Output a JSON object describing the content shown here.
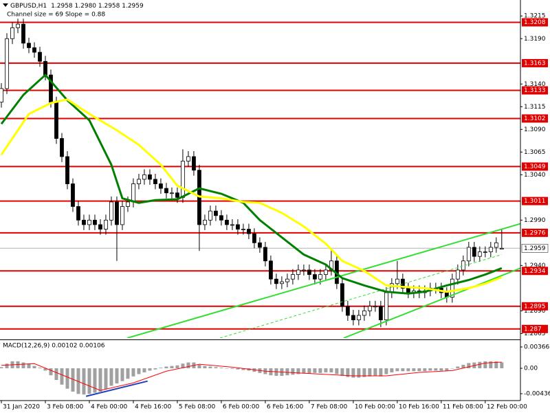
{
  "chart_data": [
    {
      "type": "candlestick",
      "title": "GBPUSD,H1",
      "ohlc_label": "1.2958 1.2980 1.2958 1.2959",
      "annotation": "Channel size = 69 Slope = 0.88",
      "open": [
        1.312,
        1.3135,
        1.319,
        1.3202,
        1.3206,
        1.3185,
        1.318,
        1.3175,
        1.3165,
        1.315,
        1.312,
        1.308,
        1.306,
        1.303,
        1.3005,
        1.299,
        1.2985,
        1.299,
        1.2985,
        1.298,
        1.299,
        1.301,
        1.2985,
        1.3005,
        1.301,
        1.303,
        1.3035,
        1.304,
        1.3035,
        1.303,
        1.3025,
        1.302,
        1.302,
        1.3015,
        1.3055,
        1.306,
        1.3045,
        1.2985,
        1.299,
        1.3,
        1.2995,
        1.299,
        1.2985,
        1.2985,
        1.298,
        1.298,
        1.2975,
        1.2965,
        1.296,
        1.2945,
        1.2925,
        1.292,
        1.2922,
        1.2925,
        1.293,
        1.2935,
        1.2935,
        1.293,
        1.2925,
        1.293,
        1.2935,
        1.2945,
        1.292,
        1.2895,
        1.2885,
        1.288,
        1.2885,
        1.289,
        1.2895,
        1.2895,
        1.288,
        1.291,
        1.292,
        1.2925,
        1.2915,
        1.291,
        1.2912,
        1.291,
        1.2912,
        1.2915,
        1.2915,
        1.291,
        1.2905,
        1.2925,
        1.2935,
        1.2945,
        1.296,
        1.295,
        1.2955,
        1.2955,
        1.296,
        1.2958
      ],
      "high": [
        1.3141,
        1.3196,
        1.3208,
        1.3212,
        1.3212,
        1.3191,
        1.3186,
        1.3181,
        1.3171,
        1.3156,
        1.3126,
        1.3086,
        1.3066,
        1.3036,
        1.3011,
        1.2996,
        1.2996,
        1.2996,
        1.2991,
        1.2996,
        1.3016,
        1.3016,
        1.3011,
        1.3016,
        1.3036,
        1.3041,
        1.3046,
        1.3046,
        1.3041,
        1.3036,
        1.3031,
        1.3026,
        1.3026,
        1.3068,
        1.3066,
        1.3066,
        1.3051,
        1.2996,
        1.3006,
        1.3006,
        1.3001,
        1.2996,
        1.2991,
        1.2991,
        1.2986,
        1.2986,
        1.2981,
        1.2971,
        1.2966,
        1.2951,
        1.2931,
        1.2928,
        1.2931,
        1.2936,
        1.2941,
        1.2941,
        1.2941,
        1.2936,
        1.2936,
        1.2941,
        1.2958,
        1.2951,
        1.2926,
        1.2901,
        1.2891,
        1.2891,
        1.2896,
        1.2901,
        1.2901,
        1.2901,
        1.2916,
        1.2926,
        1.2945,
        1.2931,
        1.2921,
        1.2918,
        1.2918,
        1.2918,
        1.2921,
        1.2921,
        1.2921,
        1.2916,
        1.2931,
        1.2941,
        1.2951,
        1.2966,
        1.2966,
        1.2961,
        1.2961,
        1.2966,
        1.2971,
        1.298
      ],
      "low": [
        1.3114,
        1.3129,
        1.3184,
        1.3196,
        1.3179,
        1.3174,
        1.3169,
        1.3159,
        1.3144,
        1.3114,
        1.3074,
        1.3054,
        1.3024,
        1.2999,
        1.2984,
        1.2979,
        1.2979,
        1.2979,
        1.2974,
        1.2974,
        1.2984,
        1.2945,
        1.2979,
        1.2999,
        1.3004,
        1.3024,
        1.3029,
        1.3029,
        1.3024,
        1.3019,
        1.3014,
        1.3014,
        1.3009,
        1.3009,
        1.3049,
        1.3039,
        1.2956,
        1.2979,
        1.2984,
        1.2989,
        1.2984,
        1.2979,
        1.2979,
        1.2974,
        1.2974,
        1.2969,
        1.2959,
        1.2954,
        1.2939,
        1.2919,
        1.2914,
        1.2914,
        1.2916,
        1.2919,
        1.2924,
        1.2929,
        1.2924,
        1.2919,
        1.2919,
        1.2924,
        1.2929,
        1.2914,
        1.2889,
        1.2879,
        1.2874,
        1.2874,
        1.2879,
        1.2884,
        1.2889,
        1.2872,
        1.2874,
        1.2904,
        1.2914,
        1.2909,
        1.2904,
        1.2904,
        1.2904,
        1.2904,
        1.2906,
        1.2909,
        1.2904,
        1.2899,
        1.2899,
        1.2919,
        1.2929,
        1.2939,
        1.2944,
        1.2944,
        1.2949,
        1.2949,
        1.2954,
        1.2958
      ],
      "close": [
        1.3135,
        1.319,
        1.3202,
        1.3206,
        1.3185,
        1.318,
        1.3175,
        1.3165,
        1.315,
        1.312,
        1.308,
        1.306,
        1.303,
        1.3005,
        1.299,
        1.2985,
        1.299,
        1.2985,
        1.298,
        1.299,
        1.301,
        1.2985,
        1.3005,
        1.301,
        1.303,
        1.3035,
        1.304,
        1.3035,
        1.303,
        1.3025,
        1.302,
        1.302,
        1.3015,
        1.3055,
        1.306,
        1.3045,
        1.2985,
        1.299,
        1.3,
        1.2995,
        1.299,
        1.2985,
        1.2985,
        1.298,
        1.298,
        1.2975,
        1.2965,
        1.296,
        1.2945,
        1.2925,
        1.292,
        1.2922,
        1.2925,
        1.293,
        1.2935,
        1.2935,
        1.293,
        1.2925,
        1.293,
        1.2935,
        1.2945,
        1.292,
        1.2895,
        1.2885,
        1.288,
        1.2885,
        1.289,
        1.2895,
        1.2895,
        1.288,
        1.291,
        1.292,
        1.2925,
        1.2915,
        1.291,
        1.2912,
        1.291,
        1.2912,
        1.2915,
        1.2915,
        1.291,
        1.2905,
        1.2925,
        1.2935,
        1.2945,
        1.296,
        1.295,
        1.2955,
        1.2955,
        1.296,
        1.2965,
        1.2959
      ],
      "moving_averages": [
        {
          "color": "#008000",
          "x": [
            0,
            4,
            8,
            12,
            16,
            20,
            22,
            25,
            28,
            32,
            36,
            40,
            44,
            47,
            51,
            55,
            59,
            62,
            66,
            70,
            74,
            77,
            81,
            85,
            88,
            91
          ],
          "values": [
            1.3096,
            1.3128,
            1.315,
            1.3122,
            1.31,
            1.3051,
            1.3014,
            1.3009,
            1.3012,
            1.3013,
            1.3025,
            1.3019,
            1.3009,
            1.299,
            1.2971,
            1.2952,
            1.2941,
            1.2926,
            1.2918,
            1.2911,
            1.2909,
            1.2911,
            1.2918,
            1.2924,
            1.293,
            1.2937
          ]
        },
        {
          "color": "#ffff00",
          "x": [
            0,
            5,
            9,
            12,
            16,
            21,
            25,
            29,
            32,
            36,
            40,
            44,
            47,
            51,
            55,
            59,
            62,
            66,
            70,
            74,
            77,
            81,
            85,
            88,
            91
          ],
          "values": [
            1.3062,
            1.3107,
            1.3119,
            1.3123,
            1.3107,
            1.3089,
            1.3073,
            1.3051,
            1.3028,
            1.3016,
            1.3014,
            1.301,
            1.3009,
            1.2998,
            1.2983,
            1.2964,
            1.2945,
            1.2934,
            1.2918,
            1.2916,
            1.2915,
            1.2911,
            1.2915,
            1.292,
            1.2927
          ]
        }
      ],
      "channel": [
        {
          "color": "#33dd33",
          "x": [
            22.9,
            94.4
          ],
          "values": [
            1.286,
            1.2986
          ]
        },
        {
          "color": "#33dd33",
          "x": [
            62.25,
            94.4
          ],
          "values": [
            1.286,
            1.2937
          ]
        },
        {
          "color": "#33dd33",
          "dashed": true,
          "x": [
            39.75,
            91
          ],
          "values": [
            1.286,
            1.2952
          ]
        }
      ],
      "levels": [
        1.3208,
        1.3163,
        1.3133,
        1.3102,
        1.3049,
        1.3011,
        1.2976,
        1.2934,
        1.2895,
        1.287
      ],
      "level_color": "#e00000",
      "current_price": 1.2959,
      "xlim": [
        -0.25,
        94.4
      ],
      "ylim": [
        1.286,
        1.3222
      ],
      "yticks": [
        1.3215,
        {
          "value": 1.319,
          "label": "1.3190"
        },
        {
          "value": 1.314,
          "label": "1.3140"
        },
        1.3115,
        {
          "value": 1.309,
          "label": "1.3090"
        },
        1.3065,
        {
          "value": 1.304,
          "label": "1.3040"
        },
        {
          "value": 1.299,
          "label": "1.2990"
        },
        {
          "value": 1.294,
          "label": "1.2940"
        },
        {
          "value": 1.289,
          "label": "1.2890"
        },
        1.2865
      ],
      "xticks": [
        {
          "value": 0,
          "label": "31 Jan 2020"
        },
        {
          "value": 8,
          "label": "3 Feb 08:00"
        },
        {
          "value": 16,
          "label": "4 Feb 00:00"
        },
        {
          "value": 24,
          "label": "4 Feb 16:00"
        },
        {
          "value": 32,
          "label": "5 Feb 08:00"
        },
        {
          "value": 40,
          "label": "6 Feb 00:00"
        },
        {
          "value": 48,
          "label": "6 Feb 16:00"
        },
        {
          "value": 56,
          "label": "7 Feb 08:00"
        },
        {
          "value": 64,
          "label": "10 Feb 00:00"
        },
        {
          "value": 72,
          "label": "10 Feb 16:00"
        },
        {
          "value": 80,
          "label": "11 Feb 08:00"
        },
        {
          "value": 88,
          "label": "12 Feb 00:00"
        }
      ]
    },
    {
      "type": "macd",
      "title": "MACD(12,26,9) 0.00102 0.00106",
      "values": [
        0.0002,
        0.0008,
        0.0012,
        0.0012,
        0.001,
        0.0008,
        0.0004,
        0.0001,
        -0.0004,
        -0.0012,
        -0.002,
        -0.0028,
        -0.0035,
        -0.004,
        -0.0044,
        -0.0045,
        -0.0044,
        -0.0042,
        -0.004,
        -0.0036,
        -0.003,
        -0.0026,
        -0.0022,
        -0.0018,
        -0.0014,
        -0.001,
        -0.0007,
        -0.0004,
        -0.0002,
        0.0001,
        0.0003,
        0.0004,
        0.0005,
        0.0008,
        0.001,
        0.001,
        0.0006,
        0.0004,
        0.0003,
        0.0002,
        0.0001,
        0.0,
        -0.0001,
        -0.0002,
        -0.0003,
        -0.0004,
        -0.0006,
        -0.0008,
        -0.001,
        -0.0012,
        -0.0013,
        -0.0013,
        -0.0012,
        -0.0011,
        -0.001,
        -0.0009,
        -0.0009,
        -0.0008,
        -0.0008,
        -0.0007,
        -0.0007,
        -0.001,
        -0.0013,
        -0.0015,
        -0.0016,
        -0.0016,
        -0.0015,
        -0.0014,
        -0.0013,
        -0.0014,
        -0.001,
        -0.0007,
        -0.0005,
        -0.0005,
        -0.0005,
        -0.0005,
        -0.0005,
        -0.0005,
        -0.0004,
        -0.0004,
        -0.0004,
        -0.0004,
        0.0,
        0.0003,
        0.0006,
        0.0009,
        0.001,
        0.0011,
        0.0012,
        0.0012,
        0.0012,
        0.00102
      ],
      "color": "#a0a0a0",
      "signal": {
        "color": "#ff0000",
        "x": [
          0,
          6,
          12,
          18,
          24,
          30,
          36,
          42,
          48,
          56,
          64,
          70,
          76,
          82,
          88,
          91
        ],
        "values": [
          0.0005,
          0.0008,
          -0.0015,
          -0.0038,
          -0.0025,
          -0.0005,
          0.0007,
          0.0002,
          -0.0005,
          -0.0009,
          -0.0013,
          -0.0013,
          -0.0007,
          -0.0004,
          0.0009,
          0.00106
        ]
      },
      "divergence": {
        "color": "#2040c0",
        "x": [
          15.4,
          26.6
        ],
        "values": [
          -0.0048,
          -0.0022
        ]
      },
      "ylim": [
        -0.00542,
        0.0046
      ],
      "yticks": [
        0.00366,
        {
          "value": 0,
          "label": "0.00"
        },
        -0.00436
      ]
    }
  ]
}
